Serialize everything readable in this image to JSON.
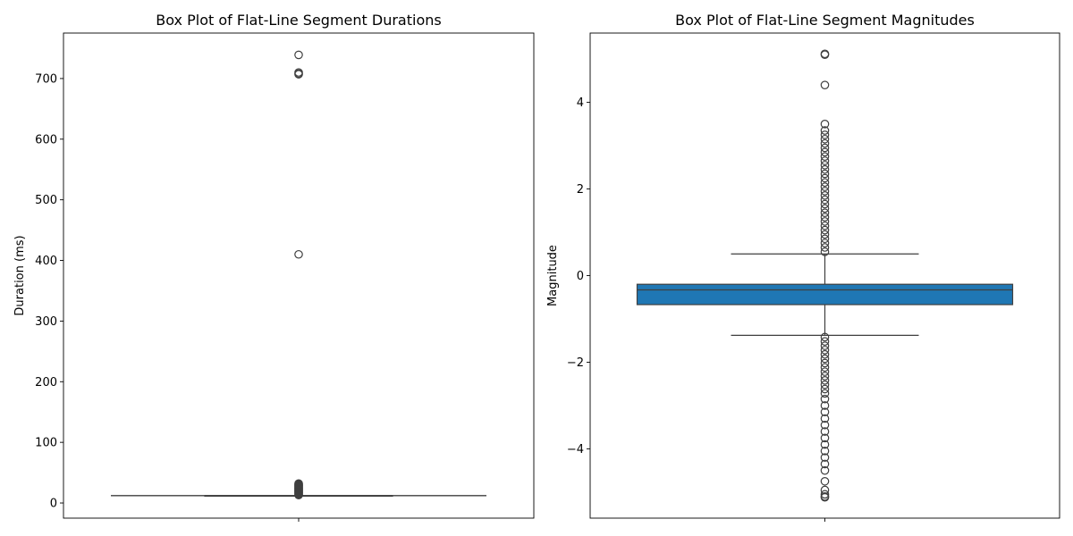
{
  "chart_data": [
    {
      "type": "box",
      "title": "Box Plot of Flat-Line Segment Durations",
      "xlabel": "",
      "ylabel": "Duration (ms)",
      "ylim": [
        -25,
        775
      ],
      "yticks": [
        0,
        100,
        200,
        300,
        400,
        500,
        600,
        700
      ],
      "grid": false,
      "box": {
        "min": 12,
        "q1": 12,
        "median": 12,
        "q3": 12,
        "max": 12
      },
      "fill": "#1f77b4",
      "outliers": [
        13,
        14,
        15,
        16,
        17,
        18,
        19,
        20,
        21,
        22,
        23,
        24,
        25,
        26,
        27,
        28,
        29,
        30,
        31,
        32,
        410,
        707,
        708,
        710,
        739
      ]
    },
    {
      "type": "box",
      "title": "Box Plot of Flat-Line Segment Magnitudes",
      "xlabel": "",
      "ylabel": "Magnitude",
      "ylim": [
        -5.6,
        5.6
      ],
      "yticks": [
        -4,
        -2,
        0,
        2,
        4
      ],
      "grid": false,
      "box": {
        "min": -1.38,
        "q1": -0.67,
        "median": -0.33,
        "q3": -0.2,
        "max": 0.5
      },
      "fill": "#1f77b4",
      "outliers": [
        0.55,
        0.65,
        0.75,
        0.85,
        0.95,
        1.05,
        1.15,
        1.25,
        1.35,
        1.45,
        1.55,
        1.65,
        1.75,
        1.85,
        1.95,
        2.05,
        2.15,
        2.25,
        2.35,
        2.45,
        2.55,
        2.65,
        2.75,
        2.85,
        2.95,
        3.05,
        3.15,
        3.25,
        3.35,
        3.5,
        4.4,
        5.1,
        5.12,
        -1.42,
        -1.52,
        -1.62,
        -1.72,
        -1.82,
        -1.92,
        -2.02,
        -2.12,
        -2.22,
        -2.32,
        -2.42,
        -2.52,
        -2.62,
        -2.72,
        -2.85,
        -3.0,
        -3.15,
        -3.3,
        -3.45,
        -3.6,
        -3.75,
        -3.9,
        -4.05,
        -4.2,
        -4.35,
        -4.5,
        -4.75,
        -4.95,
        -5.05,
        -5.1,
        -5.12
      ]
    }
  ]
}
